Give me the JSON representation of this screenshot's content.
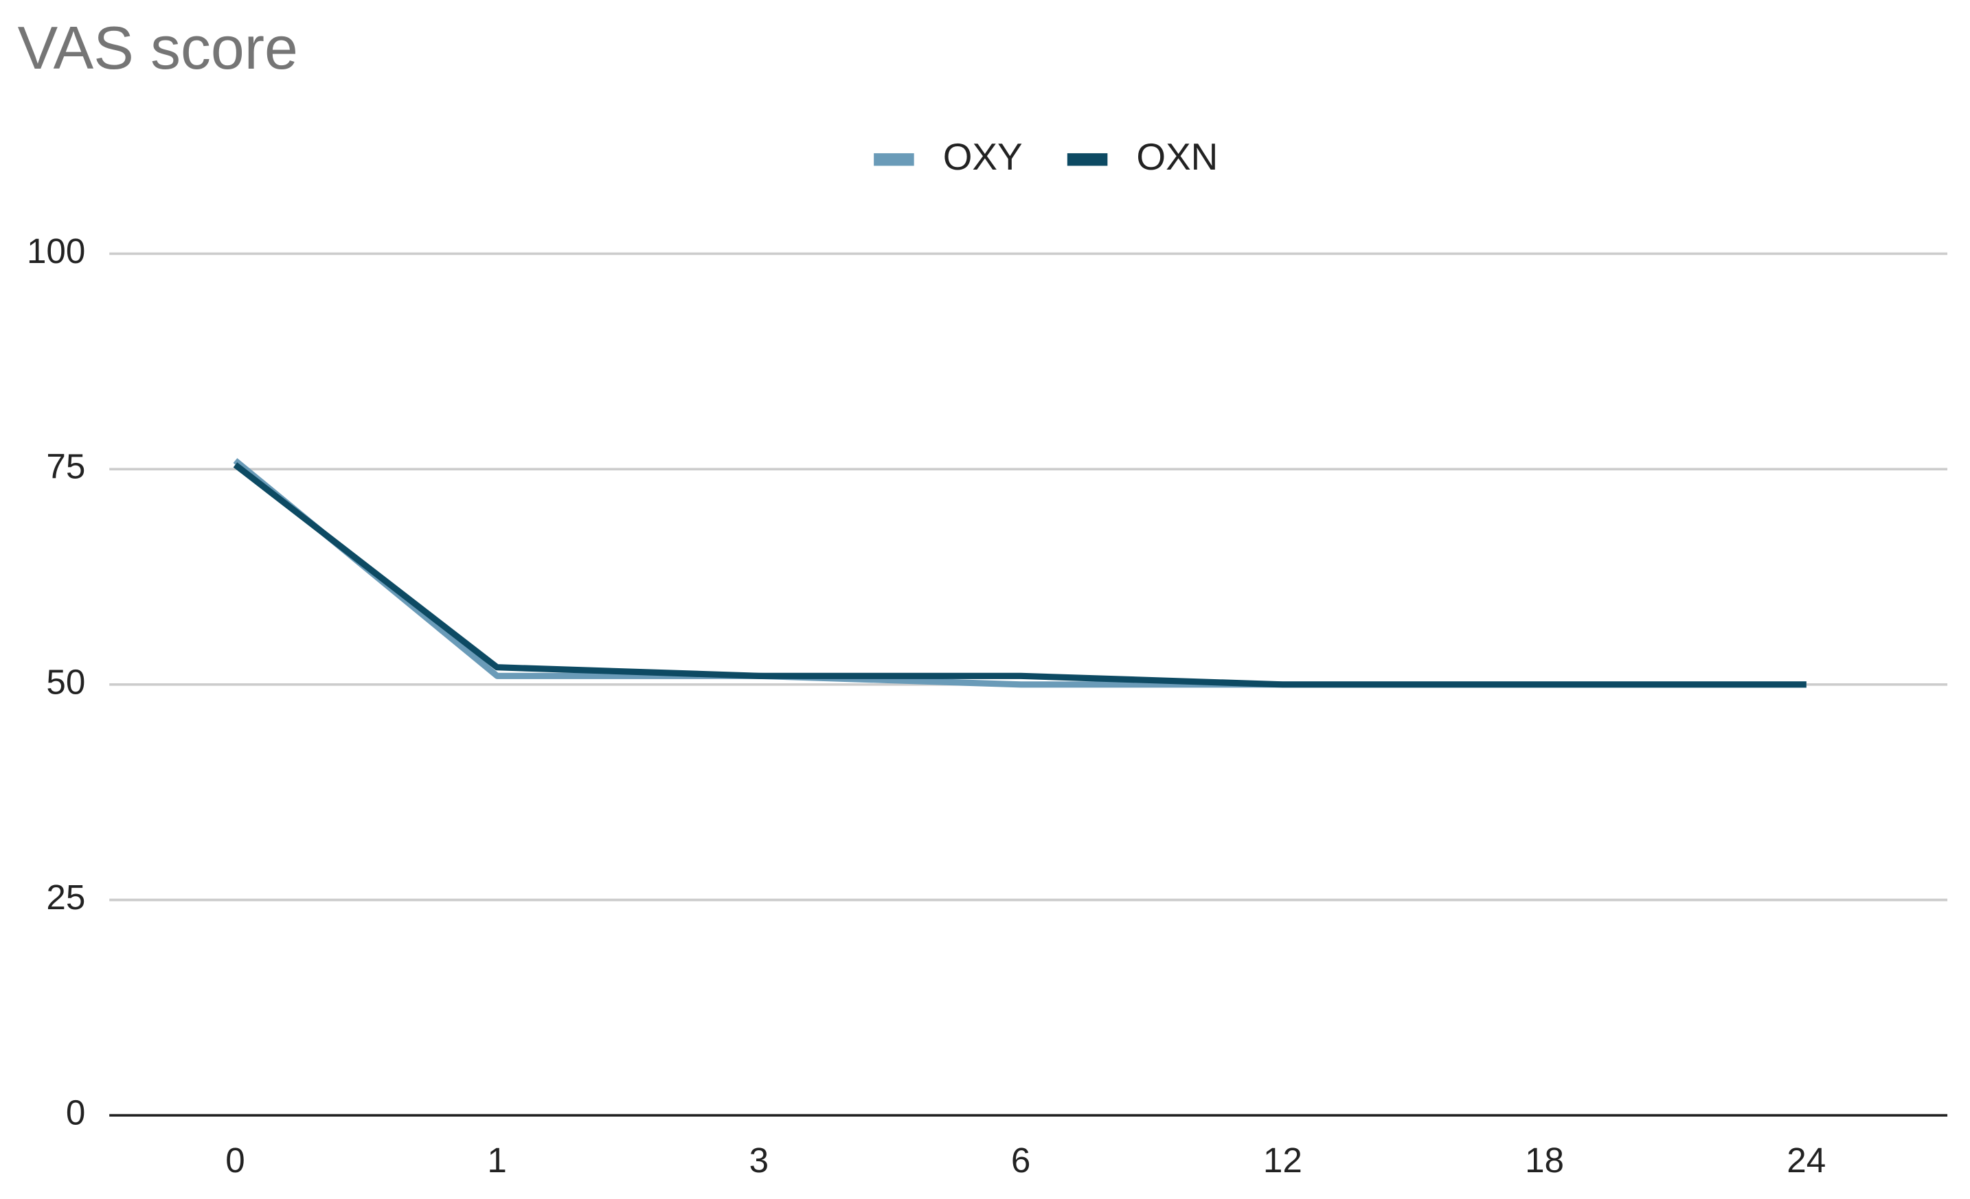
{
  "chart_data": {
    "type": "line",
    "title": "VAS score",
    "categories": [
      "0",
      "1",
      "3",
      "6",
      "12",
      "18",
      "24"
    ],
    "series": [
      {
        "name": "OXY",
        "color": "#6a9bb8",
        "values": [
          76,
          51,
          51,
          50,
          50,
          50,
          50
        ]
      },
      {
        "name": "OXN",
        "color": "#0d4a63",
        "values": [
          75.5,
          52,
          51,
          51,
          50,
          50,
          50
        ]
      }
    ],
    "ylim": [
      0,
      100
    ],
    "yticks": [
      0,
      25,
      50,
      75,
      100
    ],
    "grid": true,
    "legend": "top"
  }
}
